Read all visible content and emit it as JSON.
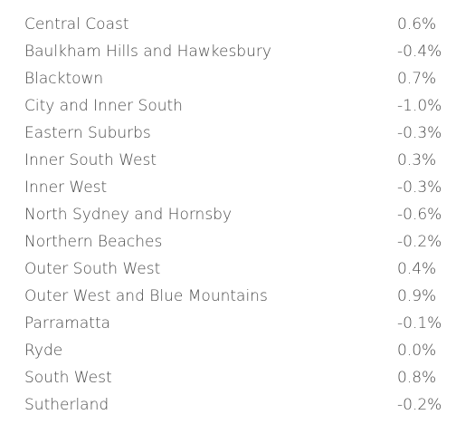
{
  "table": {
    "rows": [
      [
        "Central Coast",
        "0.6%"
      ],
      [
        "Baulkham Hills and Hawkesbury",
        "-0.4%"
      ],
      [
        "Blacktown",
        "0.7%"
      ],
      [
        "City and Inner South",
        "-1.0%"
      ],
      [
        "Eastern Suburbs",
        "-0.3%"
      ],
      [
        "Inner South West",
        "0.3%"
      ],
      [
        "Inner West",
        "-0.3%"
      ],
      [
        "North Sydney and Hornsby",
        "-0.6%"
      ],
      [
        "Northern Beaches",
        "-0.2%"
      ],
      [
        "Outer South West",
        "0.4%"
      ],
      [
        "Outer West and Blue Mountains",
        "0.9%"
      ],
      [
        "Parramatta",
        "-0.1%"
      ],
      [
        "Ryde",
        "0.0%"
      ],
      [
        "South West",
        "0.8%"
      ],
      [
        "Sutherland",
        "-0.2%"
      ]
    ]
  }
}
